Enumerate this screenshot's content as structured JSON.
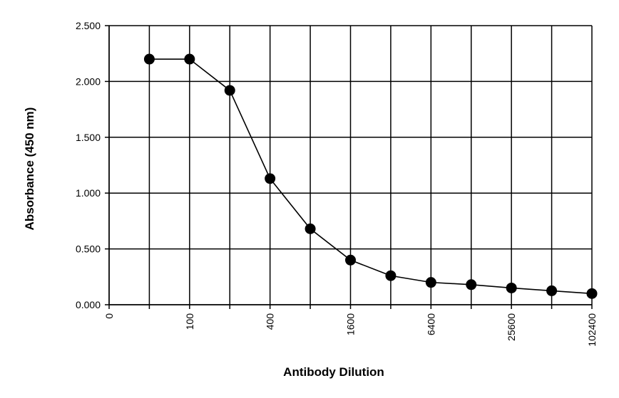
{
  "chart_data": {
    "type": "line",
    "xlabel": "Antibody Dilution",
    "ylabel": "Absorbance (450 nm)",
    "ylim": [
      0,
      2.5
    ],
    "y_ticks": [
      "0.000",
      "0.500",
      "1.000",
      "1.500",
      "2.000",
      "2.500"
    ],
    "x_tick_labels": [
      "0",
      "100",
      "400",
      "1600",
      "6400",
      "25600",
      "102400"
    ],
    "grid": true,
    "series": [
      {
        "x": [
          50,
          100,
          200,
          400,
          800,
          1600,
          3200,
          6400,
          12800,
          25600,
          51200,
          102400
        ],
        "y": [
          2.2,
          2.2,
          1.92,
          1.13,
          0.68,
          0.4,
          0.26,
          0.2,
          0.18,
          0.15,
          0.125,
          0.1
        ]
      }
    ]
  }
}
